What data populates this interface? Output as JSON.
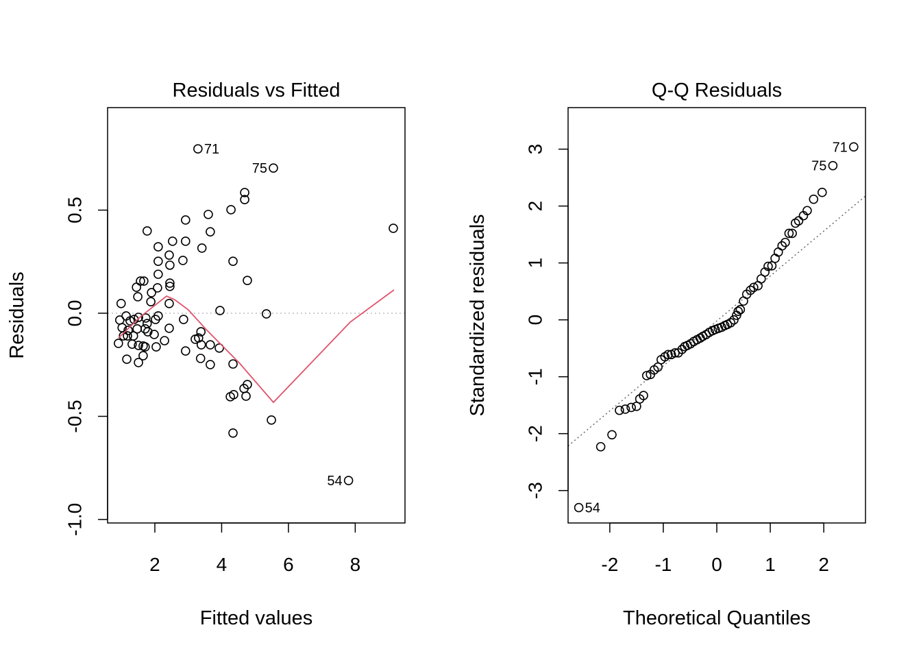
{
  "chart_data": [
    {
      "type": "scatter",
      "title": "Residuals vs Fitted",
      "xlabel": "Fitted values",
      "ylabel": "Residuals",
      "xlim": [
        0.585,
        9.49
      ],
      "ylim": [
        -1.017,
        0.997
      ],
      "xticks": [
        2,
        4,
        6,
        8
      ],
      "yticks": [
        -1.0,
        -0.5,
        0.0,
        0.5
      ],
      "ytick_labels": [
        "-1.0",
        "-0.5",
        "0.0",
        "0.5"
      ],
      "grid": false,
      "reference_line": {
        "y": 0,
        "style": "dotted",
        "color": "#BEBEBE"
      },
      "smoother_color": "#DF536B",
      "smoother": {
        "x": [
          0.91,
          1.57,
          2.35,
          2.59,
          3.0,
          3.52,
          4.54,
          5.55,
          7.85,
          9.16
        ],
        "y": [
          -0.12,
          -0.017,
          0.083,
          0.066,
          0.017,
          -0.076,
          -0.243,
          -0.432,
          -0.043,
          0.113
        ]
      },
      "points": {
        "x": [
          3.29,
          5.55,
          4.69,
          4.69,
          4.28,
          3.6,
          2.92,
          1.77,
          3.66,
          9.14,
          2.1,
          2.53,
          2.92,
          3.41,
          2.43,
          2.1,
          4.34,
          2.84,
          2.45,
          2.1,
          4.77,
          1.57,
          1.67,
          2.45,
          2.45,
          1.45,
          2.08,
          1.9,
          1.49,
          1.88,
          2.43,
          0.99,
          3.95,
          5.34,
          2.1,
          2.02,
          2.86,
          1.73,
          1.14,
          0.95,
          1.26,
          1.38,
          1.51,
          1.77,
          1.02,
          1.2,
          1.47,
          1.71,
          2.43,
          1.79,
          1.06,
          1.18,
          1.36,
          1.98,
          3.38,
          0.91,
          1.32,
          2.29,
          3.21,
          3.31,
          1.51,
          1.65,
          1.71,
          2.04,
          1.65,
          2.92,
          3.93,
          3.39,
          3.66,
          1.16,
          1.51,
          3.37,
          4.34,
          3.66,
          4.77,
          4.67,
          4.73,
          4.26,
          4.36,
          4.34,
          5.49,
          7.8
        ],
        "y": [
          0.797,
          0.704,
          0.585,
          0.551,
          0.502,
          0.479,
          0.452,
          0.399,
          0.395,
          0.412,
          0.322,
          0.349,
          0.349,
          0.316,
          0.282,
          0.252,
          0.252,
          0.256,
          0.233,
          0.189,
          0.159,
          0.156,
          0.156,
          0.146,
          0.13,
          0.126,
          0.123,
          0.1,
          0.08,
          0.056,
          0.047,
          0.047,
          0.013,
          -0.003,
          -0.013,
          -0.03,
          -0.03,
          -0.023,
          -0.013,
          -0.033,
          -0.037,
          -0.03,
          -0.02,
          -0.05,
          -0.07,
          -0.083,
          -0.076,
          -0.076,
          -0.073,
          -0.09,
          -0.11,
          -0.11,
          -0.11,
          -0.103,
          -0.09,
          -0.146,
          -0.15,
          -0.133,
          -0.126,
          -0.12,
          -0.156,
          -0.159,
          -0.163,
          -0.163,
          -0.206,
          -0.183,
          -0.169,
          -0.153,
          -0.153,
          -0.223,
          -0.239,
          -0.219,
          -0.246,
          -0.249,
          -0.346,
          -0.365,
          -0.402,
          -0.405,
          -0.395,
          -0.581,
          -0.518,
          -0.811
        ]
      },
      "labels": [
        {
          "text": "71",
          "x": 3.29,
          "y": 0.797,
          "side": "right"
        },
        {
          "text": "75",
          "x": 5.55,
          "y": 0.704,
          "side": "left"
        },
        {
          "text": "54",
          "x": 7.8,
          "y": -0.811,
          "side": "left"
        }
      ]
    },
    {
      "type": "scatter",
      "title": "Q-Q Residuals",
      "xlabel": "Theoretical Quantiles",
      "ylabel": "Standardized residuals",
      "xlim": [
        -2.78,
        2.78
      ],
      "ylim": [
        -3.57,
        3.73
      ],
      "xticks": [
        -2,
        -1,
        0,
        1,
        2
      ],
      "yticks": [
        -3,
        -2,
        -1,
        0,
        1,
        2,
        3
      ],
      "xtick_labels": [
        "-2",
        "-1",
        "0",
        "1",
        "2"
      ],
      "ytick_labels": [
        "-3",
        "-2",
        "-1",
        "0",
        "1",
        "2",
        "3"
      ],
      "grid": false,
      "reference_line": {
        "slope": 0.79,
        "intercept": -0.02,
        "style": "dotted",
        "color": "#666666"
      },
      "points": {
        "x": [
          -2.58,
          -2.17,
          -1.96,
          -1.82,
          -1.71,
          -1.6,
          -1.5,
          -1.44,
          -1.37,
          -1.31,
          -1.24,
          -1.17,
          -1.1,
          -1.04,
          -0.97,
          -0.91,
          -0.85,
          -0.78,
          -0.72,
          -0.65,
          -0.6,
          -0.55,
          -0.49,
          -0.43,
          -0.37,
          -0.31,
          -0.26,
          -0.2,
          -0.14,
          -0.08,
          -0.03,
          0.03,
          0.09,
          0.15,
          0.2,
          0.26,
          0.32,
          0.37,
          0.4,
          0.44,
          0.5,
          0.56,
          0.63,
          0.69,
          0.77,
          0.83,
          0.9,
          0.96,
          1.03,
          1.09,
          1.15,
          1.22,
          1.28,
          1.35,
          1.41,
          1.47,
          1.53,
          1.62,
          1.69,
          1.81,
          1.97,
          2.17,
          2.56
        ],
        "y": [
          -3.3,
          -2.23,
          -2.02,
          -1.59,
          -1.57,
          -1.54,
          -1.52,
          -1.39,
          -1.33,
          -0.98,
          -0.96,
          -0.88,
          -0.83,
          -0.7,
          -0.65,
          -0.61,
          -0.61,
          -0.58,
          -0.58,
          -0.52,
          -0.47,
          -0.45,
          -0.42,
          -0.38,
          -0.35,
          -0.32,
          -0.29,
          -0.26,
          -0.22,
          -0.19,
          -0.17,
          -0.15,
          -0.13,
          -0.1,
          -0.08,
          -0.05,
          0.0,
          0.08,
          0.15,
          0.18,
          0.33,
          0.45,
          0.52,
          0.57,
          0.6,
          0.72,
          0.84,
          0.94,
          0.95,
          1.08,
          1.19,
          1.3,
          1.36,
          1.52,
          1.52,
          1.7,
          1.74,
          1.83,
          1.92,
          2.12,
          2.24,
          2.71,
          3.04
        ]
      },
      "labels": [
        {
          "text": "71",
          "x": 2.56,
          "y": 3.04,
          "side": "left"
        },
        {
          "text": "75",
          "x": 2.17,
          "y": 2.71,
          "side": "left"
        },
        {
          "text": "54",
          "x": -2.58,
          "y": -3.3,
          "side": "right"
        }
      ]
    }
  ]
}
